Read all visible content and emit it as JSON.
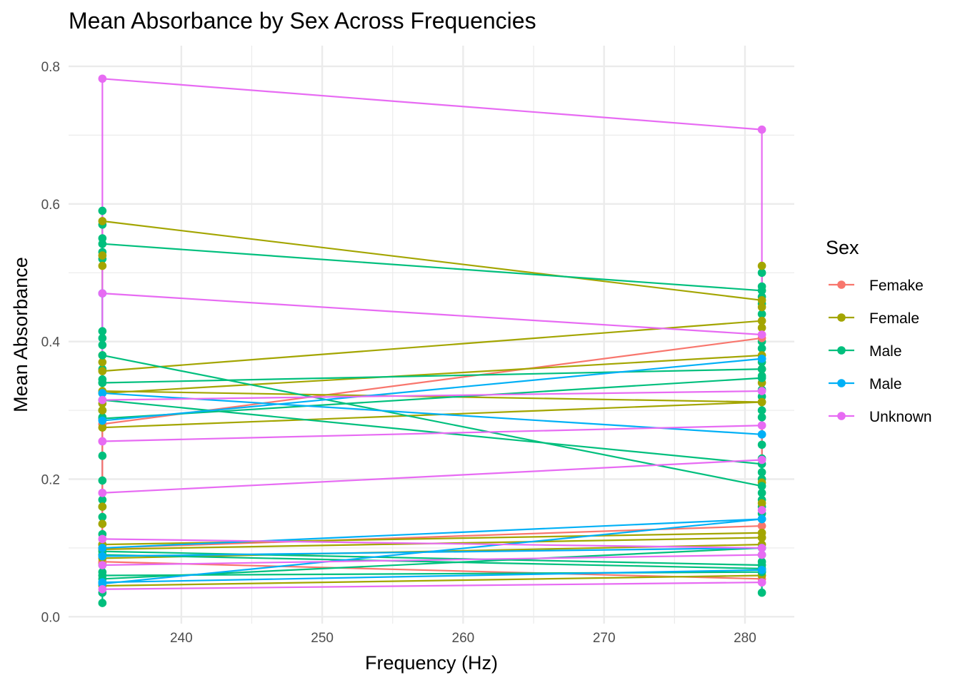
{
  "chart_data": {
    "type": "line",
    "title": "Mean Absorbance by Sex Across Frequencies",
    "xlabel": "Frequency (Hz)",
    "ylabel": "Mean Absorbance",
    "x": [
      234.4,
      281.2
    ],
    "xlim": [
      232.0,
      283.5
    ],
    "ylim": [
      -0.01,
      0.83
    ],
    "x_ticks": [
      240,
      250,
      260,
      270,
      280
    ],
    "x_tick_labels": [
      "240",
      "250",
      "260",
      "270",
      "280"
    ],
    "y_ticks": [
      0.0,
      0.2,
      0.4,
      0.6,
      0.8
    ],
    "y_tick_labels": [
      "0.0",
      "0.2",
      "0.4",
      "0.6",
      "0.8"
    ],
    "grid": true,
    "legend": {
      "title": "Sex",
      "position": "right",
      "entries": [
        {
          "name": "Femake",
          "color": "#F8766D"
        },
        {
          "name": "Female",
          "color": "#A3A500"
        },
        {
          "name": "Male",
          "color": "#00BF7D"
        },
        {
          "name": "Male",
          "color": "#00B0F6"
        },
        {
          "name": "Unknown",
          "color": "#E76BF3"
        }
      ]
    },
    "series": [
      {
        "group": 0,
        "values": [
          0.28,
          0.405
        ]
      },
      {
        "group": 0,
        "values": [
          0.1,
          0.132
        ]
      },
      {
        "group": 0,
        "values": [
          0.08,
          0.055
        ]
      },
      {
        "group": 1,
        "values": [
          0.575,
          0.46
        ]
      },
      {
        "group": 1,
        "values": [
          0.357,
          0.43
        ]
      },
      {
        "group": 1,
        "values": [
          0.325,
          0.38
        ]
      },
      {
        "group": 1,
        "values": [
          0.328,
          0.312
        ]
      },
      {
        "group": 1,
        "values": [
          0.275,
          0.312
        ]
      },
      {
        "group": 1,
        "values": [
          0.105,
          0.122
        ]
      },
      {
        "group": 1,
        "values": [
          0.098,
          0.115
        ]
      },
      {
        "group": 1,
        "values": [
          0.085,
          0.105
        ]
      },
      {
        "group": 1,
        "values": [
          0.045,
          0.06
        ]
      },
      {
        "group": 2,
        "values": [
          0.542,
          0.474
        ]
      },
      {
        "group": 2,
        "values": [
          0.38,
          0.19
        ]
      },
      {
        "group": 2,
        "values": [
          0.34,
          0.36
        ]
      },
      {
        "group": 2,
        "values": [
          0.315,
          0.222
        ]
      },
      {
        "group": 2,
        "values": [
          0.288,
          0.347
        ]
      },
      {
        "group": 2,
        "values": [
          0.095,
          0.075
        ]
      },
      {
        "group": 2,
        "values": [
          0.09,
          0.07
        ]
      },
      {
        "group": 2,
        "values": [
          0.06,
          0.065
        ]
      },
      {
        "group": 2,
        "values": [
          0.055,
          0.1
        ]
      },
      {
        "group": 3,
        "values": [
          0.285,
          0.375
        ]
      },
      {
        "group": 3,
        "values": [
          0.325,
          0.265
        ]
      },
      {
        "group": 3,
        "values": [
          0.1,
          0.142
        ]
      },
      {
        "group": 3,
        "values": [
          0.088,
          0.1
        ]
      },
      {
        "group": 3,
        "values": [
          0.048,
          0.142
        ]
      },
      {
        "group": 3,
        "values": [
          0.05,
          0.068
        ]
      },
      {
        "group": 4,
        "values": [
          0.782,
          0.708
        ]
      },
      {
        "group": 4,
        "values": [
          0.47,
          0.41
        ]
      },
      {
        "group": 4,
        "values": [
          0.315,
          0.328
        ]
      },
      {
        "group": 4,
        "values": [
          0.255,
          0.278
        ]
      },
      {
        "group": 4,
        "values": [
          0.18,
          0.228
        ]
      },
      {
        "group": 4,
        "values": [
          0.113,
          0.1
        ]
      },
      {
        "group": 4,
        "values": [
          0.075,
          0.09
        ]
      },
      {
        "group": 4,
        "values": [
          0.04,
          0.05
        ]
      }
    ],
    "extra_points": [
      {
        "group": 2,
        "x": 234.4,
        "values": [
          0.59,
          0.57,
          0.55,
          0.53,
          0.52,
          0.415,
          0.405,
          0.395,
          0.36,
          0.345,
          0.34,
          0.3,
          0.29,
          0.234,
          0.198,
          0.17,
          0.16,
          0.145,
          0.12,
          0.105,
          0.075,
          0.065,
          0.035,
          0.02
        ]
      },
      {
        "group": 1,
        "x": 234.4,
        "values": [
          0.51,
          0.525,
          0.38,
          0.37,
          0.31,
          0.3,
          0.16,
          0.135,
          0.078
        ]
      },
      {
        "group": 3,
        "x": 234.4,
        "values": [
          0.47,
          0.325,
          0.09,
          0.05
        ]
      },
      {
        "group": 4,
        "x": 234.4,
        "values": [
          0.255,
          0.18,
          0.113
        ]
      },
      {
        "group": 2,
        "x": 281.2,
        "values": [
          0.5,
          0.48,
          0.465,
          0.455,
          0.44,
          0.4,
          0.39,
          0.37,
          0.35,
          0.33,
          0.32,
          0.3,
          0.29,
          0.25,
          0.23,
          0.21,
          0.2,
          0.18,
          0.17,
          0.16,
          0.15,
          0.09,
          0.08,
          0.035
        ]
      },
      {
        "group": 1,
        "x": 281.2,
        "values": [
          0.51,
          0.45,
          0.42,
          0.36,
          0.34,
          0.195,
          0.165,
          0.115
        ]
      },
      {
        "group": 3,
        "x": 281.2,
        "values": [
          0.375,
          0.265,
          0.142,
          0.065
        ]
      },
      {
        "group": 4,
        "x": 281.2,
        "values": [
          0.41,
          0.278,
          0.155,
          0.1,
          0.05
        ]
      }
    ]
  }
}
